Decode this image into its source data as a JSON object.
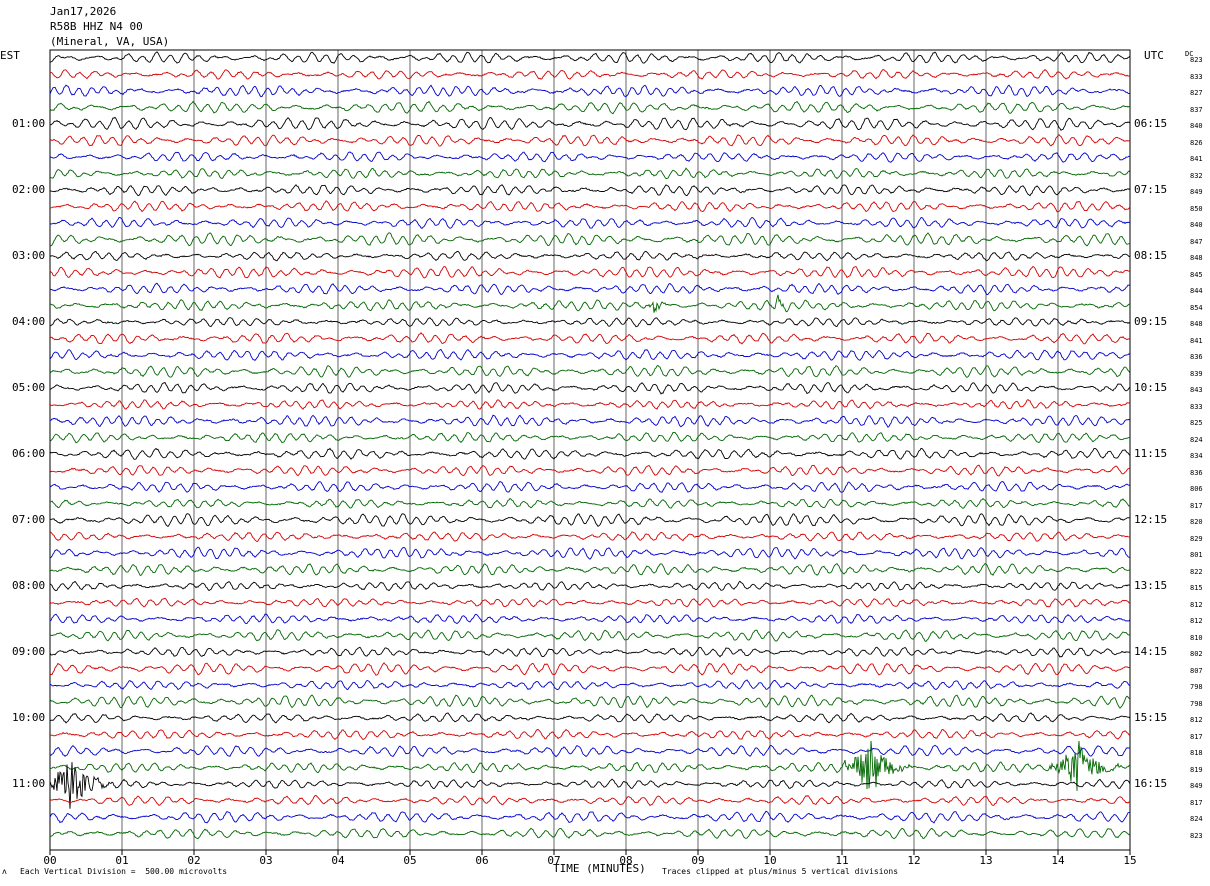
{
  "header": {
    "date": "Jan17,2026",
    "station": "R58B HHZ N4 00",
    "location": "(Mineral, VA, USA)"
  },
  "labels": {
    "left_tz": "EST",
    "right_tz": "UTC",
    "dc_header": "DC",
    "xaxis_title": "TIME (MINUTES)",
    "scale_note": "Each Vertical Division =  500.00 microvolts",
    "clip_note": "Traces clipped at plus/minus 5 vertical divisions",
    "corner_mark": "ʌ"
  },
  "colors": {
    "trace_cycle": [
      "#000000",
      "#d40000",
      "#0000cc",
      "#006600"
    ],
    "grid": "#000000"
  },
  "chart_data": {
    "type": "line",
    "description_type": "helicorder",
    "x_ticks": [
      "00",
      "01",
      "02",
      "03",
      "04",
      "05",
      "06",
      "07",
      "08",
      "09",
      "10",
      "11",
      "12",
      "13",
      "14",
      "15"
    ],
    "xlim": [
      0,
      15
    ],
    "trace_count": 48,
    "left_time_labels": [
      "01:00",
      "02:00",
      "03:00",
      "04:00",
      "05:00",
      "06:00",
      "07:00",
      "08:00",
      "09:00",
      "10:00",
      "11:00"
    ],
    "right_time_labels": [
      "06:15",
      "07:15",
      "08:15",
      "09:15",
      "10:15",
      "11:15",
      "12:15",
      "13:15",
      "14:15",
      "15:15",
      "16:15"
    ],
    "hour_label_trace_index": [
      4,
      8,
      12,
      16,
      20,
      24,
      28,
      32,
      36,
      40,
      44
    ],
    "dc_offsets": [
      823,
      833,
      827,
      837,
      840,
      826,
      841,
      832,
      849,
      850,
      840,
      847,
      848,
      845,
      844,
      854,
      848,
      841,
      836,
      839,
      843,
      833,
      825,
      824,
      834,
      836,
      806,
      817,
      820,
      829,
      801,
      822,
      815,
      812,
      812,
      810,
      802,
      807,
      798,
      798,
      812,
      817,
      818,
      819,
      849,
      817,
      824,
      823
    ],
    "events": [
      {
        "trace": 15,
        "minute": 8.4,
        "amplitude": "moderate"
      },
      {
        "trace": 15,
        "minute": 10.1,
        "amplitude": "moderate"
      },
      {
        "trace": 43,
        "minute": 11.4,
        "amplitude": "large"
      },
      {
        "trace": 43,
        "minute": 14.3,
        "amplitude": "large"
      },
      {
        "trace": 44,
        "minute": 0.3,
        "amplitude": "large"
      }
    ]
  }
}
